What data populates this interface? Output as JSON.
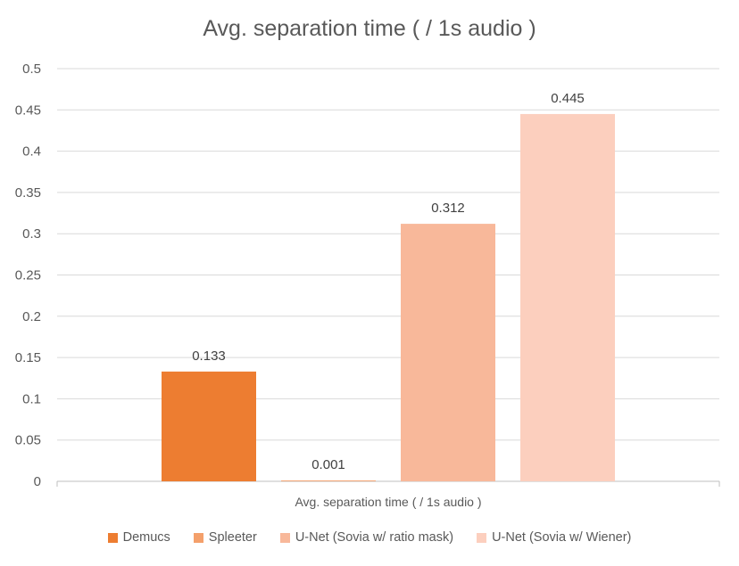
{
  "chart_data": {
    "type": "bar",
    "title": "Avg. separation time ( / 1s audio )",
    "categories": [
      "Avg. separation time ( / 1s audio )"
    ],
    "series": [
      {
        "name": "Demucs",
        "values": [
          0.133
        ],
        "color": "#ED7D31"
      },
      {
        "name": "Spleeter",
        "values": [
          0.001
        ],
        "color": "#F4A06B"
      },
      {
        "name": "U-Net (Sovia w/ ratio mask)",
        "values": [
          0.312
        ],
        "color": "#F8B89A"
      },
      {
        "name": "U-Net (Sovia w/ Wiener)",
        "values": [
          0.445
        ],
        "color": "#FCCFBE"
      }
    ],
    "data_labels": [
      "0.133",
      "0.001",
      "0.312",
      "0.445"
    ],
    "ylim": [
      0,
      0.5
    ],
    "yticks": [
      "0",
      "0.05",
      "0.1",
      "0.15",
      "0.2",
      "0.25",
      "0.3",
      "0.35",
      "0.4",
      "0.45",
      "0.5"
    ],
    "grid": true,
    "legend_position": "bottom"
  }
}
